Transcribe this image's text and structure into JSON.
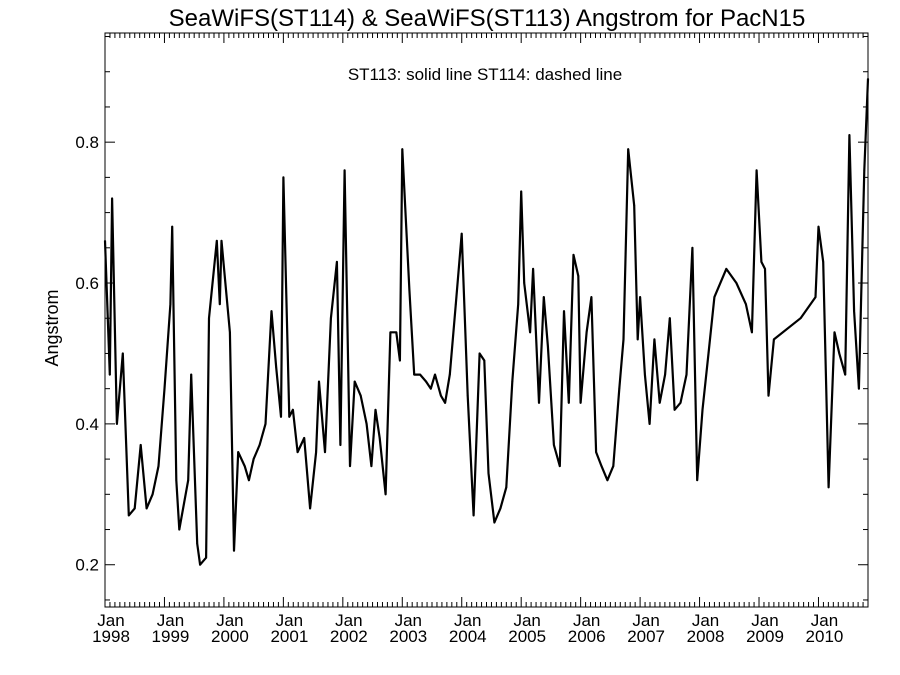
{
  "chart_data": {
    "type": "line",
    "title": "SeaWiFS(ST114) & SeaWiFS(ST113)  Angstrom for PacN15",
    "annotation": "ST113: solid line   ST114: dashed line",
    "xlabel": "",
    "ylabel": "Angstrom",
    "xlim": [
      1998.0,
      2010.833
    ],
    "ylim": [
      0.14,
      0.955
    ],
    "y_ticks": [
      {
        "value": 0.2,
        "label": "0.2"
      },
      {
        "value": 0.4,
        "label": "0.4"
      },
      {
        "value": 0.6,
        "label": "0.6"
      },
      {
        "value": 0.8,
        "label": "0.8"
      }
    ],
    "y_minor_ticks": [
      0.15,
      0.25,
      0.3,
      0.35,
      0.45,
      0.5,
      0.55,
      0.65,
      0.7,
      0.75,
      0.85,
      0.9,
      0.95
    ],
    "x_ticks": [
      {
        "value": 1998,
        "month": "Jan",
        "year": "1998"
      },
      {
        "value": 1999,
        "month": "Jan",
        "year": "1999"
      },
      {
        "value": 2000,
        "month": "Jan",
        "year": "2000"
      },
      {
        "value": 2001,
        "month": "Jan",
        "year": "2001"
      },
      {
        "value": 2002,
        "month": "Jan",
        "year": "2002"
      },
      {
        "value": 2003,
        "month": "Jan",
        "year": "2003"
      },
      {
        "value": 2004,
        "month": "Jan",
        "year": "2004"
      },
      {
        "value": 2005,
        "month": "Jan",
        "year": "2005"
      },
      {
        "value": 2006,
        "month": "Jan",
        "year": "2006"
      },
      {
        "value": 2007,
        "month": "Jan",
        "year": "2007"
      },
      {
        "value": 2008,
        "month": "Jan",
        "year": "2008"
      },
      {
        "value": 2009,
        "month": "Jan",
        "year": "2009"
      },
      {
        "value": 2010,
        "month": "Jan",
        "year": "2010"
      }
    ],
    "grid": false,
    "series": [
      {
        "style": "solid",
        "color": "#000000",
        "points": [
          [
            1998.0,
            0.66
          ],
          [
            1998.08,
            0.47
          ],
          [
            1998.12,
            0.72
          ],
          [
            1998.2,
            0.4
          ],
          [
            1998.3,
            0.5
          ],
          [
            1998.4,
            0.27
          ],
          [
            1998.5,
            0.28
          ],
          [
            1998.6,
            0.37
          ],
          [
            1998.7,
            0.28
          ],
          [
            1998.8,
            0.3
          ],
          [
            1998.9,
            0.34
          ],
          [
            1999.0,
            0.45
          ],
          [
            1999.1,
            0.57
          ],
          [
            1999.13,
            0.68
          ],
          [
            1999.2,
            0.32
          ],
          [
            1999.25,
            0.25
          ],
          [
            1999.4,
            0.32
          ],
          [
            1999.45,
            0.47
          ],
          [
            1999.55,
            0.23
          ],
          [
            1999.6,
            0.2
          ],
          [
            1999.7,
            0.21
          ],
          [
            1999.75,
            0.55
          ],
          [
            1999.88,
            0.66
          ],
          [
            1999.93,
            0.57
          ],
          [
            1999.96,
            0.66
          ],
          [
            2000.1,
            0.53
          ],
          [
            2000.17,
            0.22
          ],
          [
            2000.24,
            0.36
          ],
          [
            2000.35,
            0.34
          ],
          [
            2000.42,
            0.32
          ],
          [
            2000.5,
            0.35
          ],
          [
            2000.6,
            0.37
          ],
          [
            2000.7,
            0.4
          ],
          [
            2000.8,
            0.56
          ],
          [
            2000.88,
            0.48
          ],
          [
            2000.96,
            0.41
          ],
          [
            2001.0,
            0.75
          ],
          [
            2001.1,
            0.41
          ],
          [
            2001.16,
            0.42
          ],
          [
            2001.24,
            0.36
          ],
          [
            2001.35,
            0.38
          ],
          [
            2001.45,
            0.28
          ],
          [
            2001.55,
            0.36
          ],
          [
            2001.6,
            0.46
          ],
          [
            2001.7,
            0.36
          ],
          [
            2001.8,
            0.55
          ],
          [
            2001.9,
            0.63
          ],
          [
            2001.96,
            0.37
          ],
          [
            2002.03,
            0.76
          ],
          [
            2002.12,
            0.34
          ],
          [
            2002.2,
            0.46
          ],
          [
            2002.3,
            0.44
          ],
          [
            2002.4,
            0.4
          ],
          [
            2002.48,
            0.34
          ],
          [
            2002.55,
            0.42
          ],
          [
            2002.62,
            0.38
          ],
          [
            2002.72,
            0.3
          ],
          [
            2002.8,
            0.53
          ],
          [
            2002.9,
            0.53
          ],
          [
            2002.96,
            0.49
          ],
          [
            2003.0,
            0.79
          ],
          [
            2003.12,
            0.59
          ],
          [
            2003.2,
            0.47
          ],
          [
            2003.3,
            0.47
          ],
          [
            2003.4,
            0.46
          ],
          [
            2003.48,
            0.45
          ],
          [
            2003.55,
            0.47
          ],
          [
            2003.65,
            0.44
          ],
          [
            2003.72,
            0.43
          ],
          [
            2003.8,
            0.47
          ],
          [
            2003.9,
            0.57
          ],
          [
            2004.0,
            0.67
          ],
          [
            2004.1,
            0.44
          ],
          [
            2004.2,
            0.27
          ],
          [
            2004.3,
            0.5
          ],
          [
            2004.38,
            0.49
          ],
          [
            2004.45,
            0.33
          ],
          [
            2004.55,
            0.26
          ],
          [
            2004.65,
            0.28
          ],
          [
            2004.75,
            0.31
          ],
          [
            2004.85,
            0.46
          ],
          [
            2004.95,
            0.57
          ],
          [
            2005.0,
            0.73
          ],
          [
            2005.05,
            0.6
          ],
          [
            2005.15,
            0.53
          ],
          [
            2005.2,
            0.62
          ],
          [
            2005.3,
            0.43
          ],
          [
            2005.38,
            0.58
          ],
          [
            2005.45,
            0.51
          ],
          [
            2005.55,
            0.37
          ],
          [
            2005.65,
            0.34
          ],
          [
            2005.72,
            0.56
          ],
          [
            2005.8,
            0.43
          ],
          [
            2005.88,
            0.64
          ],
          [
            2005.96,
            0.61
          ],
          [
            2006.0,
            0.43
          ],
          [
            2006.1,
            0.53
          ],
          [
            2006.18,
            0.58
          ],
          [
            2006.26,
            0.36
          ],
          [
            2006.35,
            0.34
          ],
          [
            2006.45,
            0.32
          ],
          [
            2006.55,
            0.34
          ],
          [
            2006.65,
            0.45
          ],
          [
            2006.72,
            0.52
          ],
          [
            2006.8,
            0.79
          ],
          [
            2006.9,
            0.71
          ],
          [
            2006.96,
            0.52
          ],
          [
            2007.0,
            0.58
          ],
          [
            2007.08,
            0.47
          ],
          [
            2007.16,
            0.4
          ],
          [
            2007.24,
            0.52
          ],
          [
            2007.33,
            0.43
          ],
          [
            2007.42,
            0.47
          ],
          [
            2007.5,
            0.55
          ],
          [
            2007.58,
            0.42
          ],
          [
            2007.68,
            0.43
          ],
          [
            2007.78,
            0.47
          ],
          [
            2007.88,
            0.65
          ],
          [
            2007.96,
            0.32
          ],
          [
            2008.05,
            0.42
          ],
          [
            2008.15,
            0.5
          ],
          [
            2008.25,
            0.58
          ],
          [
            2008.45,
            0.62
          ],
          [
            2008.62,
            0.6
          ],
          [
            2008.78,
            0.57
          ],
          [
            2008.88,
            0.53
          ],
          [
            2008.96,
            0.76
          ],
          [
            2009.04,
            0.63
          ],
          [
            2009.1,
            0.62
          ],
          [
            2009.16,
            0.44
          ],
          [
            2009.25,
            0.52
          ],
          [
            2009.7,
            0.55
          ],
          [
            2009.95,
            0.58
          ],
          [
            2010.0,
            0.68
          ],
          [
            2010.08,
            0.63
          ],
          [
            2010.17,
            0.31
          ],
          [
            2010.27,
            0.53
          ],
          [
            2010.35,
            0.5
          ],
          [
            2010.45,
            0.47
          ],
          [
            2010.52,
            0.81
          ],
          [
            2010.6,
            0.56
          ],
          [
            2010.68,
            0.45
          ],
          [
            2010.77,
            0.76
          ],
          [
            2010.833,
            0.89
          ]
        ]
      }
    ]
  }
}
